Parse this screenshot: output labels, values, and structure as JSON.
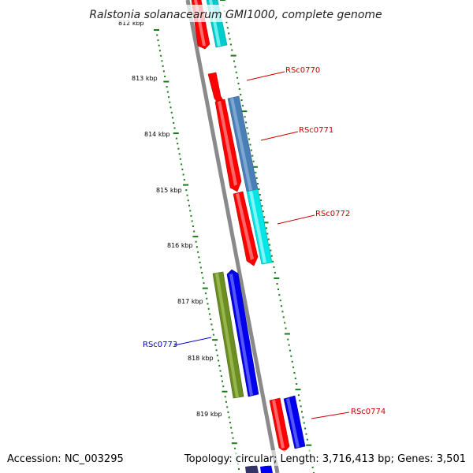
{
  "title": "Ralstonia solanacearum GMI1000, complete genome",
  "footer": {
    "accession": "Accession: NC_003295",
    "summary": "Topology: circular; Length: 3,716,413 bp; Genes: 3,501"
  },
  "colors": {
    "backbone": "#808080",
    "tick": "#1a7a1a",
    "label_forward": "#cc0000",
    "label_reverse": "#0000cc"
  },
  "ruler": {
    "labels": [
      "812 kbp",
      "813 kbp",
      "814 kbp",
      "815 kbp",
      "816 kbp",
      "817 kbp",
      "818 kbp",
      "819 kbp"
    ]
  },
  "gene_labels": [
    {
      "id": "RSc0770",
      "text": "RSc0770",
      "strand": "forward"
    },
    {
      "id": "RSc0771",
      "text": "RSc0771",
      "strand": "forward"
    },
    {
      "id": "RSc0772",
      "text": "RSc0772",
      "strand": "forward"
    },
    {
      "id": "RSc0773",
      "text": "RSc0773",
      "strand": "reverse"
    },
    {
      "id": "RSc0774",
      "text": "RSc0774",
      "strand": "forward"
    }
  ]
}
